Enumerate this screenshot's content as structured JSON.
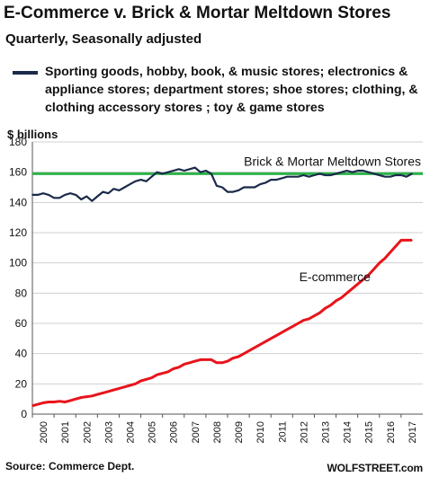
{
  "title": "E-Commerce v. Brick & Mortar Meltdown Stores",
  "subtitle": "Quarterly, Seasonally adjusted",
  "legend_text": "Sporting goods, hobby, book, & music stores; electronics & appliance stores; department stores; shoe stores; clothing, & clothing accessory stores ; toy & game stores",
  "source": "Source: Commerce Dept.",
  "brand": "WOLFSTREET.com",
  "colors": {
    "brick": "#1b2a4a",
    "ecommerce": "#e8141b",
    "reference": "#2db34a",
    "grid": "#d0d0d0"
  },
  "chart_data": {
    "type": "line",
    "ylabel": "$ billions",
    "ylim": [
      0,
      180
    ],
    "yticks": [
      0,
      20,
      40,
      60,
      80,
      100,
      120,
      140,
      160,
      180
    ],
    "xlim": [
      2000,
      2018
    ],
    "xticks": [
      "2000",
      "2001",
      "2002",
      "2003",
      "2004",
      "2005",
      "2006",
      "2007",
      "2008",
      "2009",
      "2010",
      "2011",
      "2012",
      "2013",
      "2014",
      "2015",
      "2016",
      "2017"
    ],
    "grid": "horizontal",
    "reference_line": {
      "value": 159,
      "label": "Brick & Mortar Meltdown Stores",
      "color": "#2db34a"
    },
    "series": [
      {
        "name": "Sporting goods, hobby, book, & music stores; electronics & appliance stores; department stores; shoe stores; clothing, & clothing accessory stores ; toy & game stores",
        "color": "#1b2a4a",
        "x": [
          2000.0,
          2000.25,
          2000.5,
          2000.75,
          2001.0,
          2001.25,
          2001.5,
          2001.75,
          2002.0,
          2002.25,
          2002.5,
          2002.75,
          2003.0,
          2003.25,
          2003.5,
          2003.75,
          2004.0,
          2004.25,
          2004.5,
          2004.75,
          2005.0,
          2005.25,
          2005.5,
          2005.75,
          2006.0,
          2006.25,
          2006.5,
          2006.75,
          2007.0,
          2007.25,
          2007.5,
          2007.75,
          2008.0,
          2008.25,
          2008.5,
          2008.75,
          2009.0,
          2009.25,
          2009.5,
          2009.75,
          2010.0,
          2010.25,
          2010.5,
          2010.75,
          2011.0,
          2011.25,
          2011.5,
          2011.75,
          2012.0,
          2012.25,
          2012.5,
          2012.75,
          2013.0,
          2013.25,
          2013.5,
          2013.75,
          2014.0,
          2014.25,
          2014.5,
          2014.75,
          2015.0,
          2015.25,
          2015.5,
          2015.75,
          2016.0,
          2016.25,
          2016.5,
          2016.75,
          2017.0,
          2017.25,
          2017.5
        ],
        "values": [
          145,
          145,
          146,
          145,
          143,
          143,
          145,
          146,
          145,
          142,
          144,
          141,
          144,
          147,
          146,
          149,
          148,
          150,
          152,
          154,
          155,
          154,
          157,
          160,
          159,
          160,
          161,
          162,
          161,
          162,
          163,
          160,
          161,
          159,
          151,
          150,
          147,
          147,
          148,
          150,
          150,
          150,
          152,
          153,
          155,
          155,
          156,
          157,
          157,
          157,
          158,
          157,
          158,
          159,
          158,
          158,
          159,
          160,
          161,
          160,
          161,
          161,
          160,
          159,
          158,
          157,
          157,
          158,
          158,
          157,
          159
        ]
      },
      {
        "name": "E-commerce",
        "color": "#e8141b",
        "x": [
          2000.0,
          2000.25,
          2000.5,
          2000.75,
          2001.0,
          2001.25,
          2001.5,
          2001.75,
          2002.0,
          2002.25,
          2002.5,
          2002.75,
          2003.0,
          2003.25,
          2003.5,
          2003.75,
          2004.0,
          2004.25,
          2004.5,
          2004.75,
          2005.0,
          2005.25,
          2005.5,
          2005.75,
          2006.0,
          2006.25,
          2006.5,
          2006.75,
          2007.0,
          2007.25,
          2007.5,
          2007.75,
          2008.0,
          2008.25,
          2008.5,
          2008.75,
          2009.0,
          2009.25,
          2009.5,
          2009.75,
          2010.0,
          2010.25,
          2010.5,
          2010.75,
          2011.0,
          2011.25,
          2011.5,
          2011.75,
          2012.0,
          2012.25,
          2012.5,
          2012.75,
          2013.0,
          2013.25,
          2013.5,
          2013.75,
          2014.0,
          2014.25,
          2014.5,
          2014.75,
          2015.0,
          2015.25,
          2015.5,
          2015.75,
          2016.0,
          2016.25,
          2016.5,
          2016.75,
          2017.0,
          2017.25,
          2017.5
        ],
        "values": [
          5.5,
          6.5,
          7.5,
          8,
          8,
          8.5,
          8,
          9,
          10,
          11,
          11.5,
          12,
          13,
          14,
          15,
          16,
          17,
          18,
          19,
          20,
          22,
          23,
          24,
          26,
          27,
          28,
          30,
          31,
          33,
          34,
          35,
          36,
          36,
          36,
          34,
          34,
          35,
          37,
          38,
          40,
          42,
          44,
          46,
          48,
          50,
          52,
          54,
          56,
          58,
          60,
          62,
          63,
          65,
          67,
          70,
          72,
          75,
          77,
          80,
          83,
          86,
          89,
          92,
          96,
          100,
          103,
          107,
          111,
          115,
          115,
          115
        ]
      }
    ],
    "annotations": [
      {
        "text": "E-commerce"
      }
    ]
  }
}
